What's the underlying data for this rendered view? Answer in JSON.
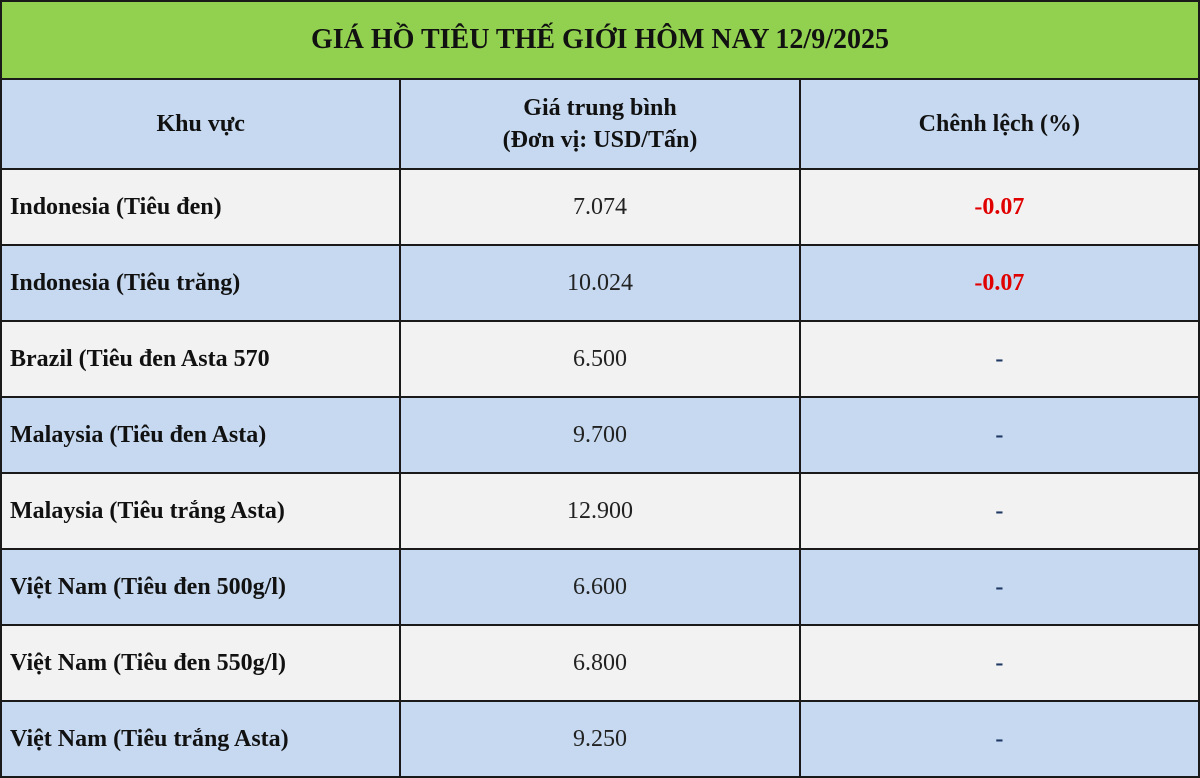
{
  "title": "GIÁ HỒ TIÊU THẾ GIỚI HÔM NAY 12/9/2025",
  "headers": {
    "region": "Khu vực",
    "price_line1": "Giá trung bình",
    "price_line2": "(Đơn vị: USD/Tấn)",
    "change": "Chênh lệch (%)"
  },
  "colors": {
    "title_bg": "#92d050",
    "header_bg": "#c6d9f0",
    "negative": "#e00000"
  },
  "rows": [
    {
      "region": "Indonesia (Tiêu đen)",
      "price": "7.074",
      "change": "-0.07"
    },
    {
      "region": "Indonesia (Tiêu trăng)",
      "price": "10.024",
      "change": "-0.07"
    },
    {
      "region": "Brazil (Tiêu đen Asta 570",
      "price": "6.500",
      "change": "-"
    },
    {
      "region": "Malaysia (Tiêu đen Asta)",
      "price": "9.700",
      "change": "-"
    },
    {
      "region": "Malaysia (Tiêu trắng Asta)",
      "price": "12.900",
      "change": "-"
    },
    {
      "region": "Việt Nam (Tiêu đen 500g/l)",
      "price": "6.600",
      "change": "-"
    },
    {
      "region": "Việt Nam (Tiêu đen 550g/l)",
      "price": "6.800",
      "change": "-"
    },
    {
      "region": "Việt Nam (Tiêu trắng Asta)",
      "price": "9.250",
      "change": "-"
    }
  ]
}
